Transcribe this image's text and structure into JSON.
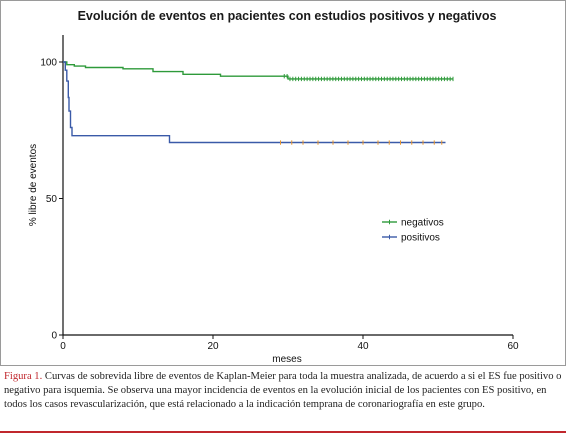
{
  "chart_data": {
    "type": "line",
    "title": "Evolución de eventos en pacientes con estudios positivos y negativos",
    "xlabel": "meses",
    "ylabel": "% libre de eventos",
    "xlim": [
      0,
      60
    ],
    "ylim": [
      0,
      100
    ],
    "x_ticks": [
      0,
      20,
      40,
      60
    ],
    "y_ticks": [
      0,
      50,
      100
    ],
    "grid": false,
    "legend_position": "right-middle",
    "series": [
      {
        "name": "negativos",
        "color": "#2e9a3a",
        "step_points": [
          [
            0,
            100
          ],
          [
            0.5,
            99
          ],
          [
            1.5,
            98.5
          ],
          [
            3,
            98
          ],
          [
            8,
            97.5
          ],
          [
            12,
            96.5
          ],
          [
            16,
            95.5
          ],
          [
            21,
            94.8
          ],
          [
            30,
            93.8
          ],
          [
            52,
            93.8
          ]
        ],
        "censor_range": [
          29.5,
          52
        ],
        "censor_count": 60
      },
      {
        "name": "positivos",
        "color": "#3a5aa8",
        "step_points": [
          [
            0,
            100
          ],
          [
            0.3,
            97
          ],
          [
            0.5,
            93
          ],
          [
            0.7,
            87
          ],
          [
            0.8,
            82
          ],
          [
            1,
            76
          ],
          [
            1.2,
            73
          ],
          [
            14,
            73
          ],
          [
            14.2,
            70.5
          ],
          [
            51,
            70.5
          ]
        ],
        "censor_points": [
          29,
          30.5,
          32,
          34,
          36,
          38,
          40,
          42,
          43.5,
          45,
          46.5,
          48,
          49.5,
          50.5
        ],
        "censor_color": "#e8962e"
      }
    ]
  },
  "caption": {
    "label": "Figura 1.",
    "text": " Curvas de sobrevida libre de eventos de Kaplan-Meier para toda la muestra analizada, de acuerdo a si el ES fue positivo o negativo para isquemia. Se observa una mayor incidencia de eventos en la evolución inicial de los pacientes con ES positivo, en todos los casos revascularización, que está relacionado a la indicación temprana de coronariografía en este grupo."
  }
}
